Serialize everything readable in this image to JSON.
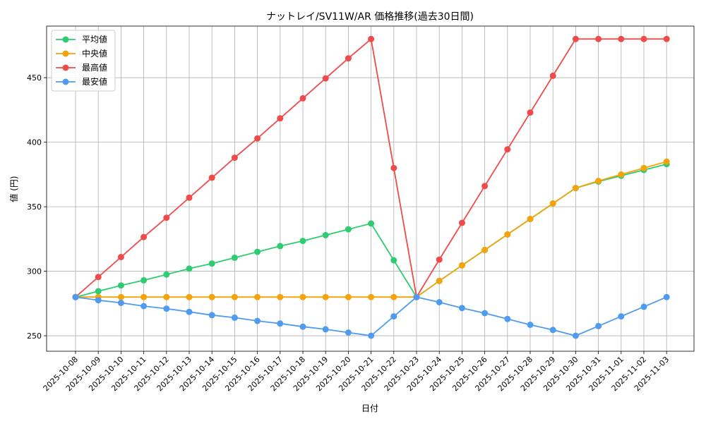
{
  "chart_data": {
    "type": "line",
    "title": "ナットレイ/SV11W/AR 価格推移(過去30日間)",
    "xlabel": "日付",
    "ylabel": "値 (円)",
    "ylim": [
      238,
      490
    ],
    "yticks": [
      250,
      300,
      350,
      400,
      450
    ],
    "grid": true,
    "legend_position": "top-left",
    "categories": [
      "2025-10-08",
      "2025-10-09",
      "2025-10-10",
      "2025-10-11",
      "2025-10-12",
      "2025-10-13",
      "2025-10-14",
      "2025-10-15",
      "2025-10-16",
      "2025-10-17",
      "2025-10-18",
      "2025-10-19",
      "2025-10-20",
      "2025-10-21",
      "2025-10-22",
      "2025-10-23",
      "2025-10-24",
      "2025-10-25",
      "2025-10-26",
      "2025-10-27",
      "2025-10-28",
      "2025-10-29",
      "2025-10-30",
      "2025-10-31",
      "2025-11-01",
      "2025-11-02",
      "2025-11-03"
    ],
    "series": [
      {
        "name": "平均値",
        "color": "#2ecc71",
        "values": [
          280,
          284.5,
          289,
          293,
          297.5,
          302,
          306,
          310.5,
          315,
          319.5,
          323.5,
          328,
          332.5,
          337,
          308.5,
          280,
          292.5,
          304.5,
          316.5,
          328.5,
          340.5,
          352.5,
          364.5,
          369.5,
          374,
          378.5,
          383
        ]
      },
      {
        "name": "中央値",
        "color": "#f5a30a",
        "values": [
          280,
          280,
          280,
          280,
          280,
          280,
          280,
          280,
          280,
          280,
          280,
          280,
          280,
          280,
          280,
          280,
          292.5,
          304.5,
          316.5,
          328.5,
          340.5,
          352.5,
          364.5,
          370,
          375,
          380,
          385
        ]
      },
      {
        "name": "最高値",
        "color": "#ef4b4b",
        "values": [
          280,
          295.5,
          311,
          326.5,
          341.5,
          357,
          372.5,
          388,
          403,
          418.5,
          434,
          449.5,
          465,
          480,
          380,
          280,
          309,
          337.5,
          366,
          394.5,
          423,
          451.5,
          480,
          480,
          480,
          480,
          480
        ]
      },
      {
        "name": "最安値",
        "color": "#4f9bf0",
        "values": [
          280,
          277.5,
          275.5,
          273,
          271,
          268.5,
          266,
          264,
          261.5,
          259.5,
          257,
          255,
          252.5,
          250,
          265,
          280,
          276,
          271.5,
          267.5,
          263,
          258.5,
          254.5,
          250,
          257.5,
          265,
          272.5,
          280
        ]
      }
    ]
  }
}
